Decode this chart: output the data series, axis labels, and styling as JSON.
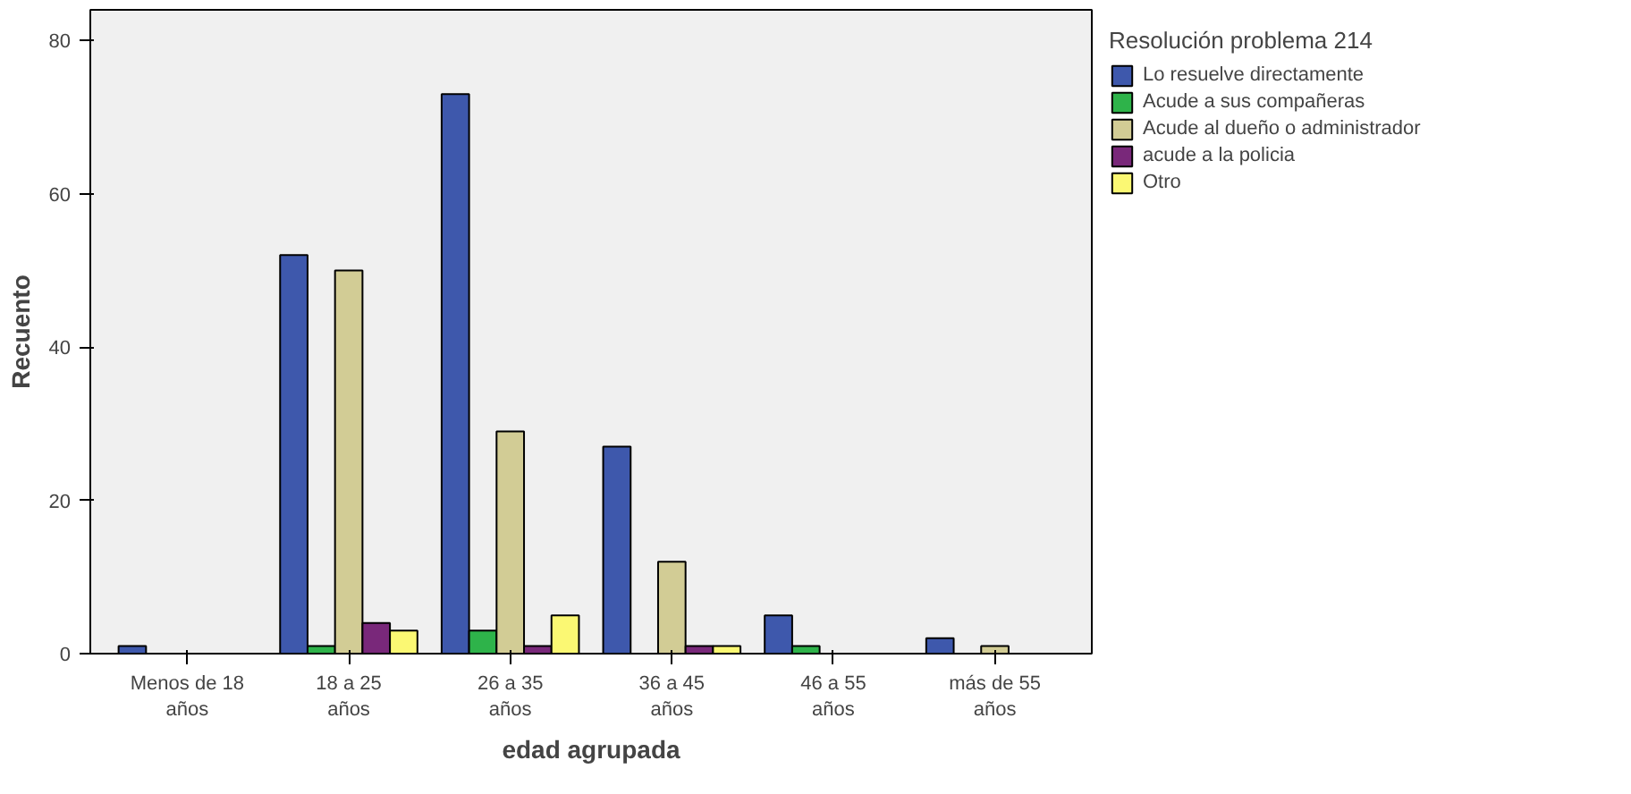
{
  "chart_data": {
    "type": "bar",
    "xlabel": "edad agrupada",
    "ylabel": "Recuento",
    "legend_title": "Resolución problema 214",
    "categories": [
      "Menos de 18 años",
      "18 a 25 años",
      "26 a 35 años",
      "36 a 45 años",
      "46 a 55 años",
      "más de 55 años"
    ],
    "series": [
      {
        "name": "Lo resuelve directamente",
        "color": "#3e58ac",
        "values": [
          1,
          52,
          73,
          27,
          5,
          2
        ]
      },
      {
        "name": "Acude a sus compañeras",
        "color": "#2eb34a",
        "values": [
          null,
          1,
          3,
          null,
          1,
          null
        ]
      },
      {
        "name": "Acude al dueño o administrador",
        "color": "#d2cc95",
        "values": [
          null,
          50,
          29,
          12,
          null,
          1
        ]
      },
      {
        "name": "acude a la policia",
        "color": "#79287a",
        "values": [
          null,
          4,
          1,
          1,
          null,
          null
        ]
      },
      {
        "name": "Otro",
        "color": "#fbf873",
        "values": [
          null,
          3,
          5,
          1,
          null,
          null
        ]
      }
    ],
    "ylim": [
      0,
      84
    ],
    "yticks": [
      0,
      20,
      40,
      60,
      80
    ],
    "grid": false,
    "legend": "right"
  }
}
